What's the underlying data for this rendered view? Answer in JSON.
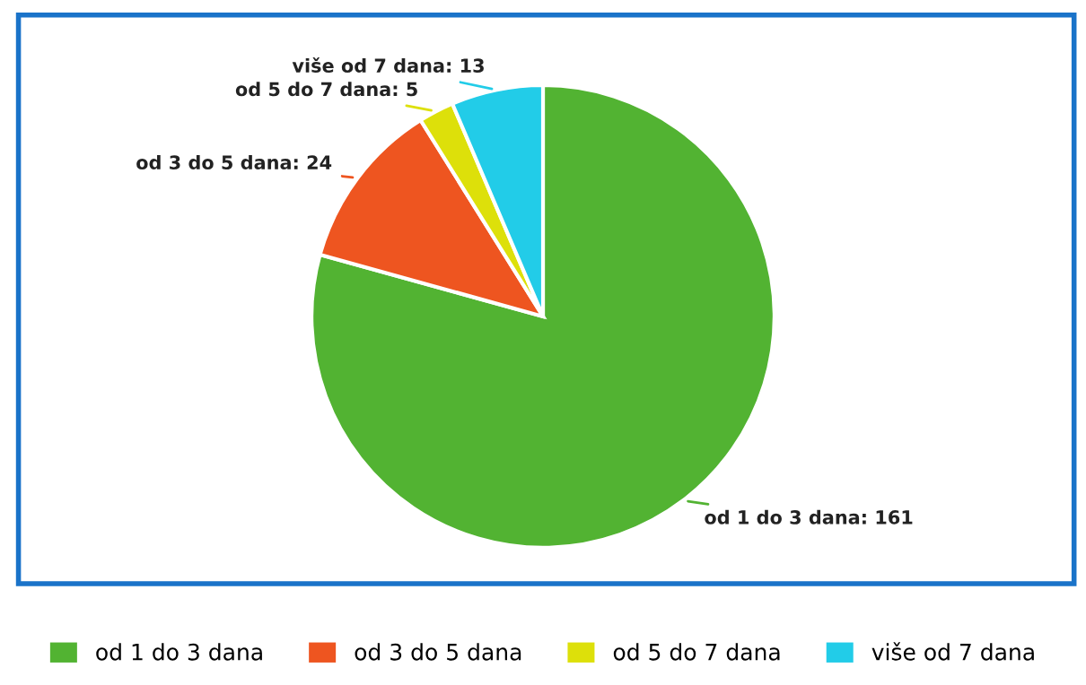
{
  "chart_data": {
    "type": "pie",
    "categories": [
      "od 1 do 3 dana",
      "od 3 do 5 dana",
      "od 5 do 7 dana",
      "više od 7 dana"
    ],
    "values": [
      161,
      24,
      5,
      13
    ],
    "colors": [
      "#52b332",
      "#ee5520",
      "#dde00a",
      "#22cce8"
    ],
    "value_labels": [
      "od 1 do 3 dana: 161",
      "od 3 do 5 dana: 24",
      "od 5 do 7 dana: 5",
      "više od 7 dana: 13"
    ],
    "legend": "bottom"
  }
}
